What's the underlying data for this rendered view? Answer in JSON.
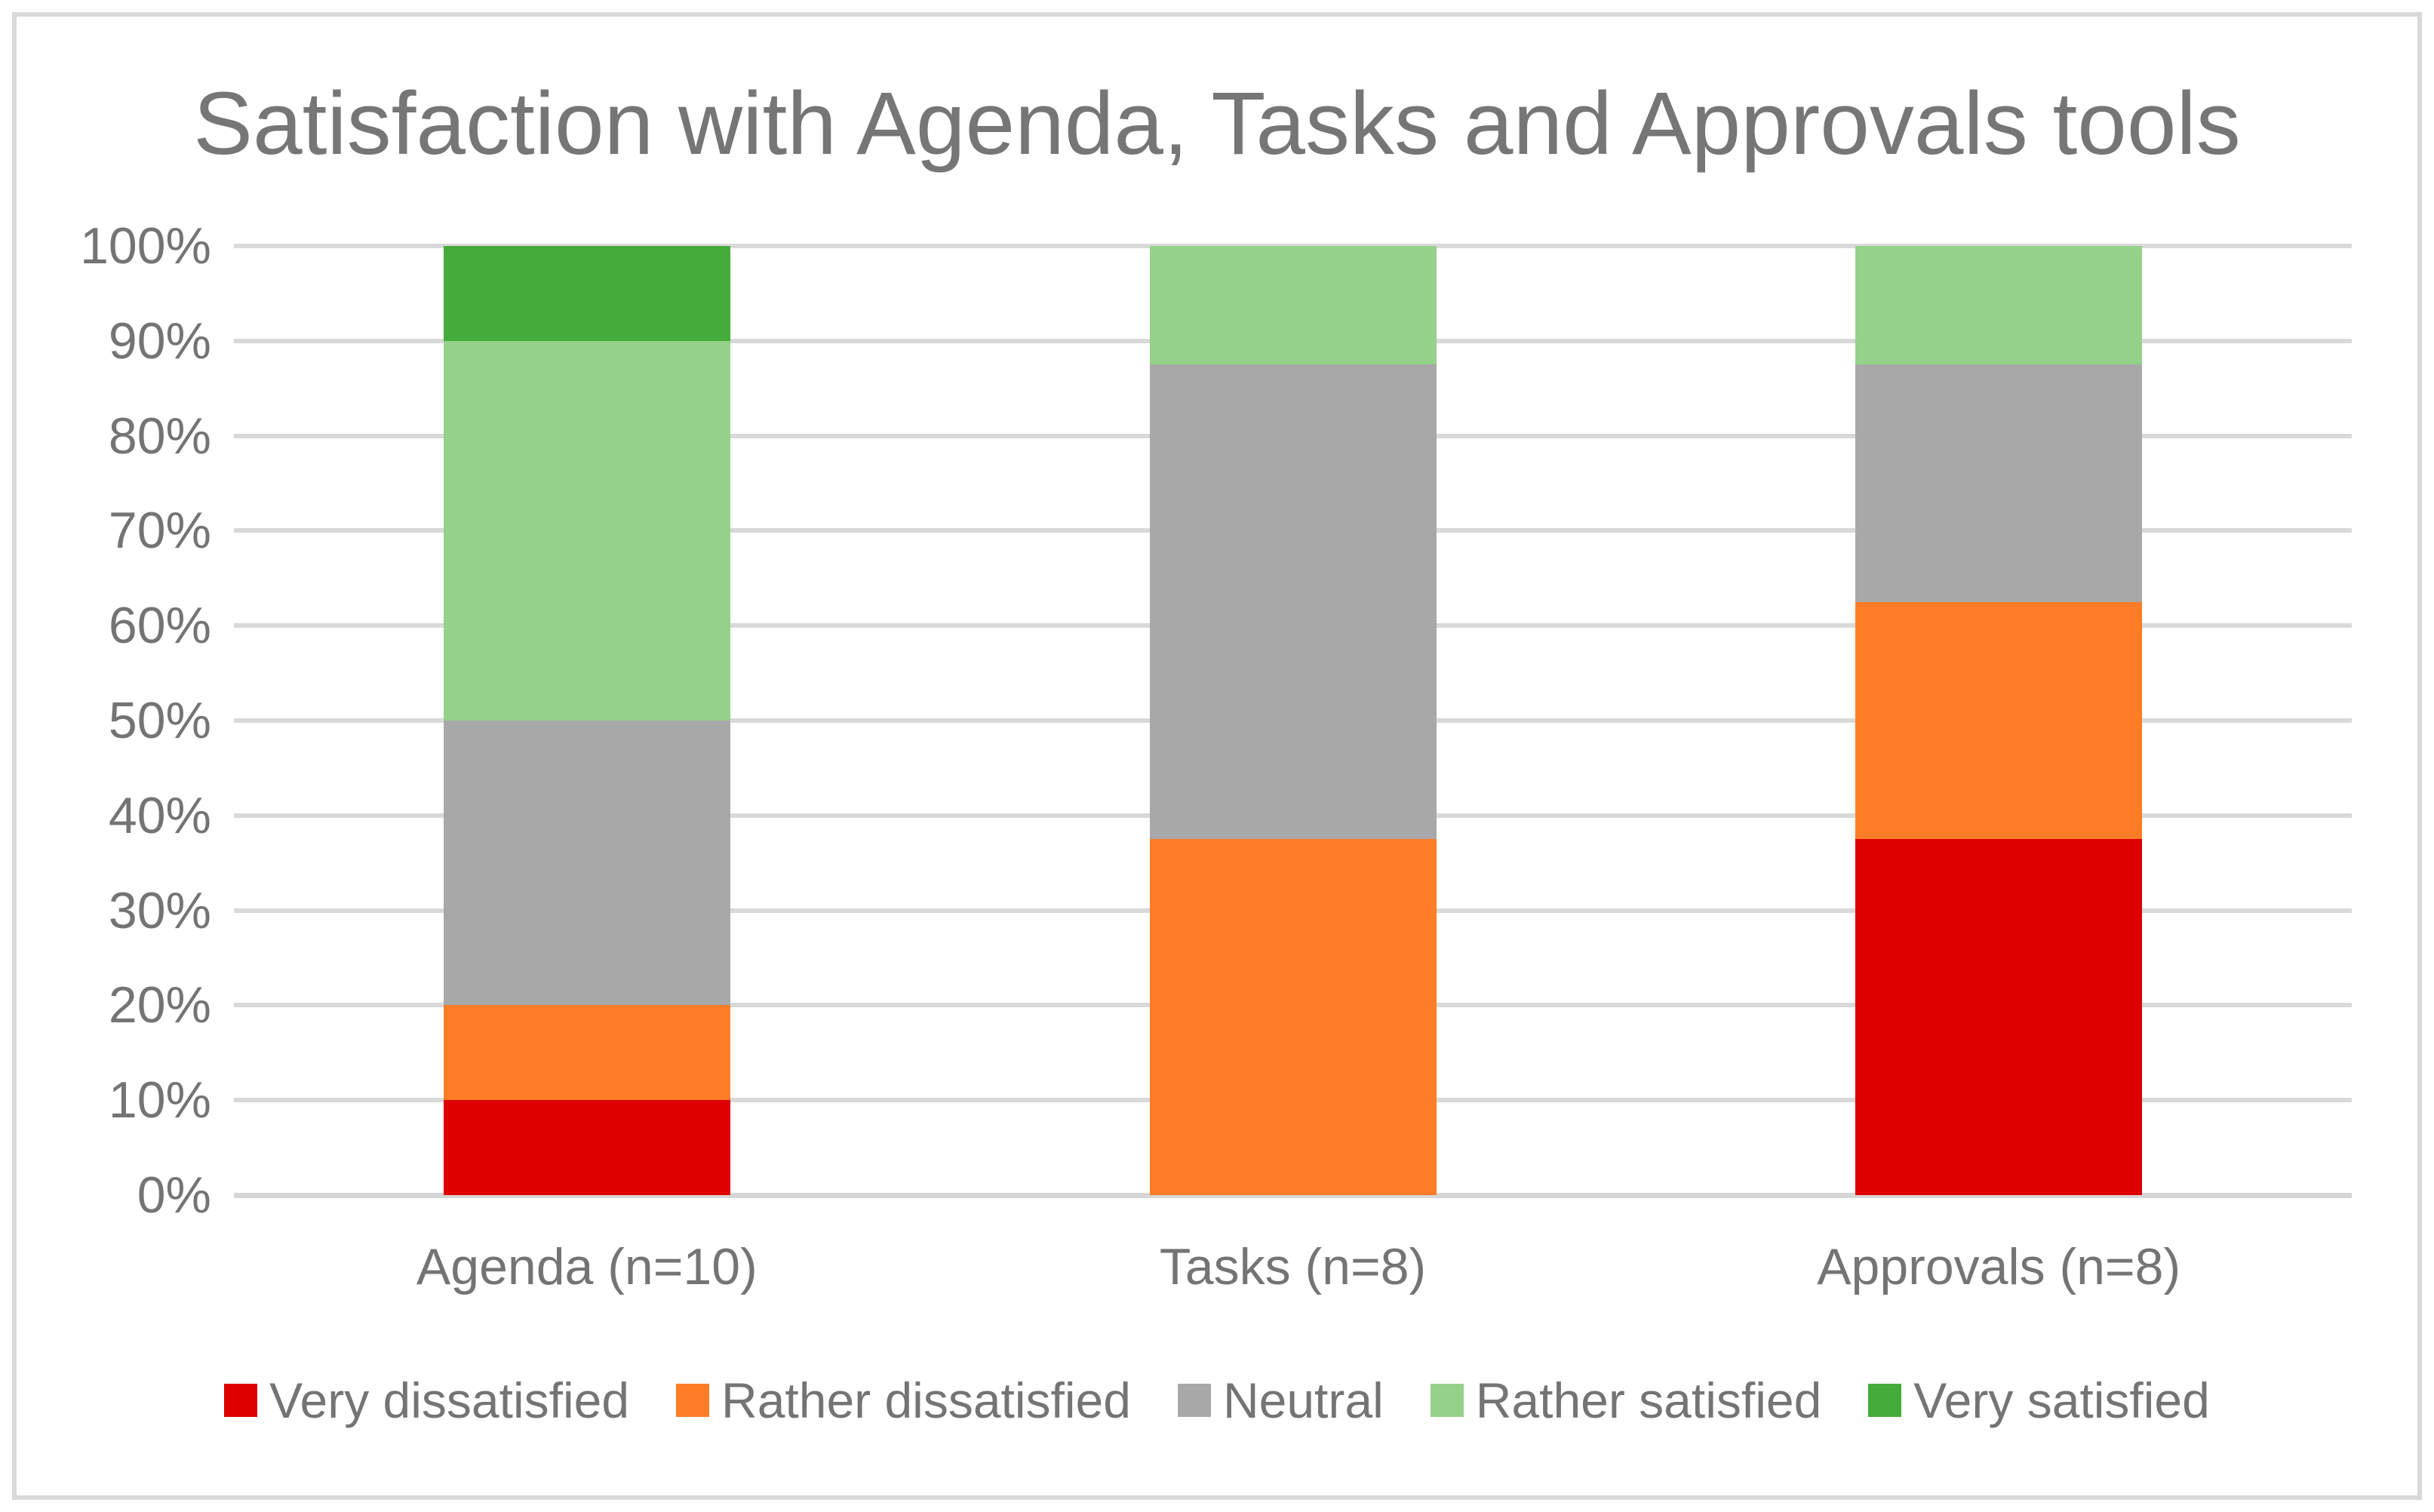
{
  "chart_data": {
    "type": "bar",
    "stacked": true,
    "stacked_unit": "percent",
    "title": "Satisfaction with Agenda, Tasks and Approvals tools",
    "categories": [
      "Agenda (n=10)",
      "Tasks (n=8)",
      "Approvals (n=8)"
    ],
    "series": [
      {
        "name": "Very dissatisfied",
        "color": "#DE0000",
        "values": [
          10,
          0,
          37.5
        ]
      },
      {
        "name": "Rather dissatisfied",
        "color": "#FF7D26",
        "values": [
          10,
          37.5,
          25
        ]
      },
      {
        "name": "Neutral",
        "color": "#A8A8A8",
        "values": [
          30,
          50,
          25
        ]
      },
      {
        "name": "Rather satisfied",
        "color": "#95D189",
        "values": [
          40,
          12.5,
          12.5
        ]
      },
      {
        "name": "Very satisfied",
        "color": "#45AC3B",
        "values": [
          10,
          0,
          0
        ]
      }
    ],
    "xlabel": "",
    "ylabel": "",
    "ylim": [
      0,
      100
    ],
    "yticks": [
      "0%",
      "10%",
      "20%",
      "30%",
      "40%",
      "50%",
      "60%",
      "70%",
      "80%",
      "90%",
      "100%"
    ],
    "grid": "horizontal",
    "gridline_color": "#D9D9D9",
    "legend_position": "bottom",
    "text_color": "#767676"
  }
}
